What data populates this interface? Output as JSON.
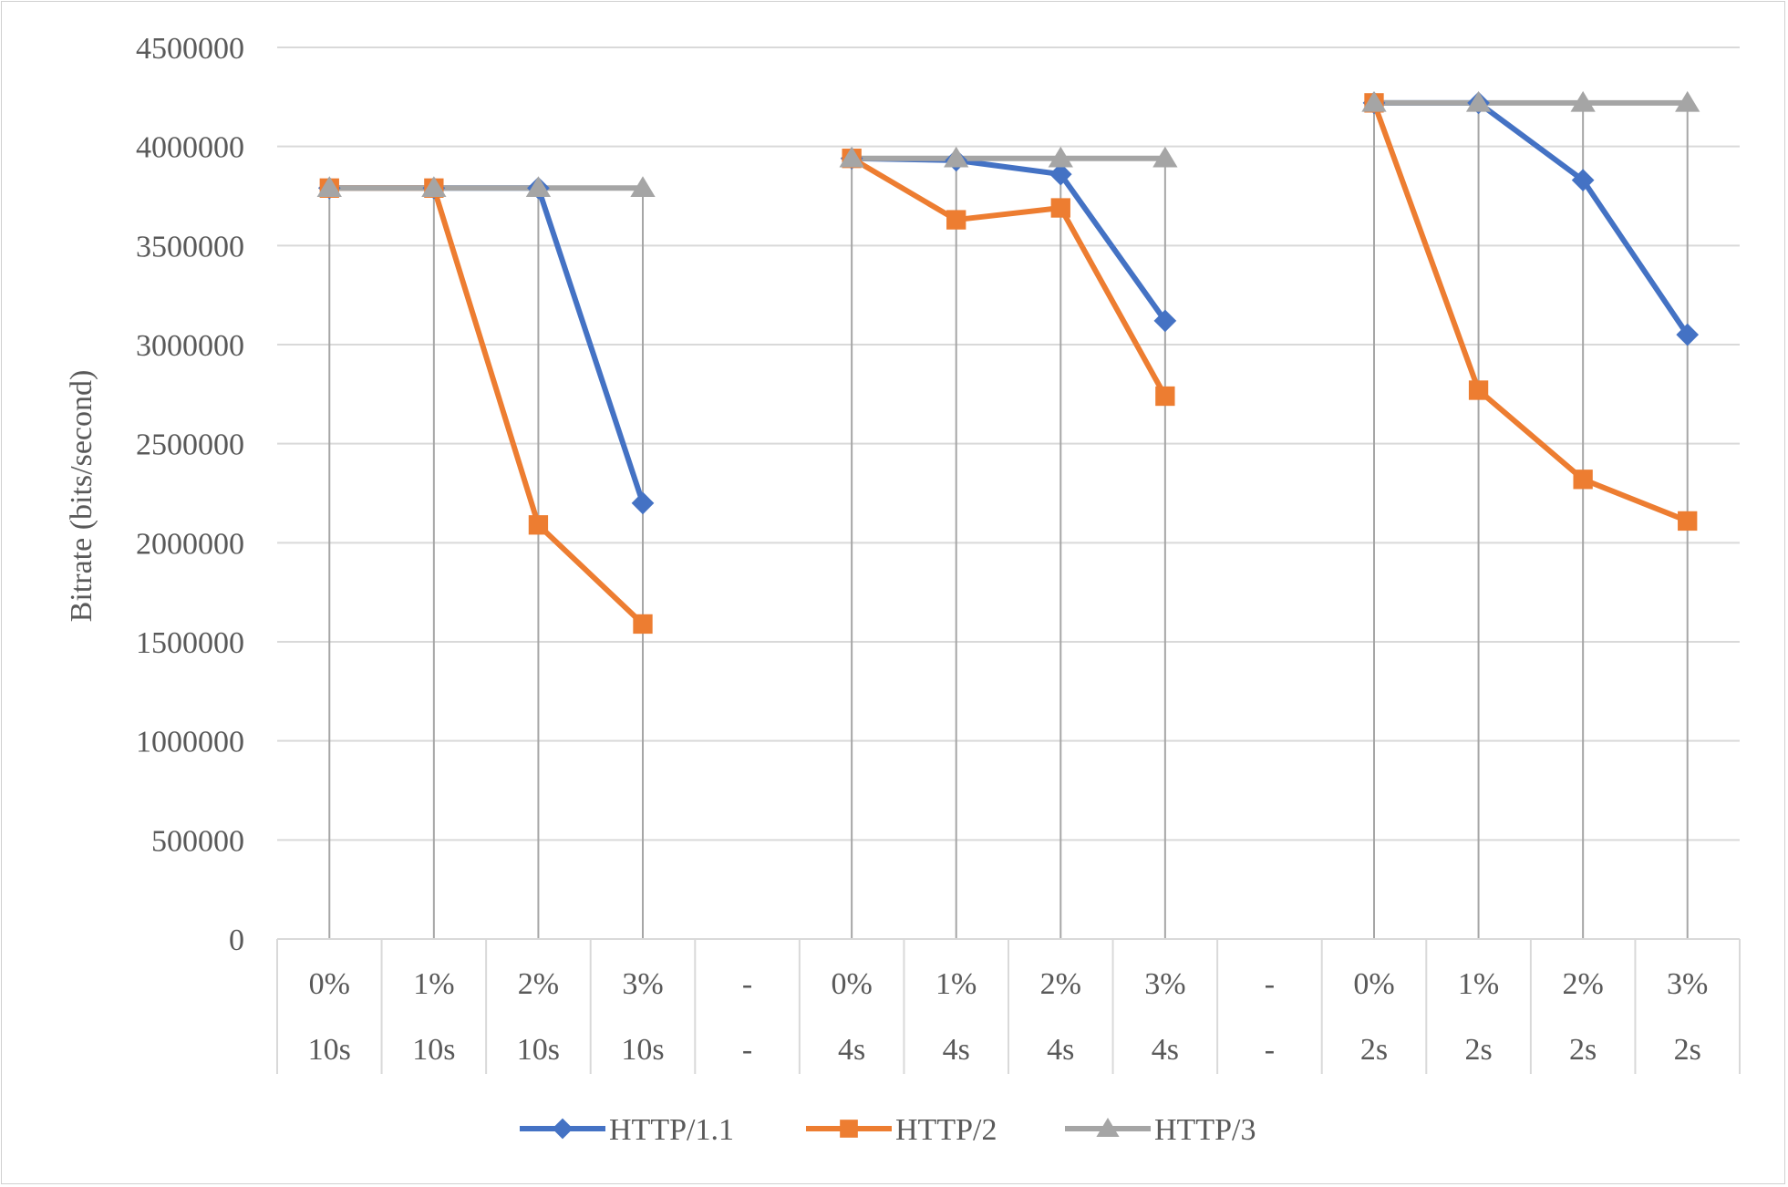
{
  "chart_data": {
    "type": "line",
    "title": "",
    "xlabel": "",
    "ylabel": "Bitrate (bits/second)",
    "ylim": [
      0,
      4500000
    ],
    "yticks": [
      0,
      500000,
      1000000,
      1500000,
      2000000,
      2500000,
      3000000,
      3500000,
      4000000,
      4500000
    ],
    "ytick_labels": [
      "0",
      "500000",
      "1000000",
      "1500000",
      "2000000",
      "2500000",
      "3000000",
      "3500000",
      "4000000",
      "4500000"
    ],
    "categories": [
      {
        "loss": "0%",
        "segment": "10s"
      },
      {
        "loss": "1%",
        "segment": "10s"
      },
      {
        "loss": "2%",
        "segment": "10s"
      },
      {
        "loss": "3%",
        "segment": "10s"
      },
      {
        "loss": "-",
        "segment": "-"
      },
      {
        "loss": "0%",
        "segment": "4s"
      },
      {
        "loss": "1%",
        "segment": "4s"
      },
      {
        "loss": "2%",
        "segment": "4s"
      },
      {
        "loss": "3%",
        "segment": "4s"
      },
      {
        "loss": "-",
        "segment": "-"
      },
      {
        "loss": "0%",
        "segment": "2s"
      },
      {
        "loss": "1%",
        "segment": "2s"
      },
      {
        "loss": "2%",
        "segment": "2s"
      },
      {
        "loss": "3%",
        "segment": "2s"
      }
    ],
    "series": [
      {
        "name": "HTTP/1.1",
        "color": "#4472C4",
        "marker": "diamond",
        "values": [
          3790000,
          3790000,
          3790000,
          2200000,
          null,
          3940000,
          3930000,
          3860000,
          3120000,
          null,
          4220000,
          4220000,
          3830000,
          3050000
        ]
      },
      {
        "name": "HTTP/2",
        "color": "#ED7D31",
        "marker": "square",
        "values": [
          3790000,
          3790000,
          2090000,
          1590000,
          null,
          3940000,
          3630000,
          3690000,
          2740000,
          null,
          4220000,
          2770000,
          2320000,
          2110000
        ]
      },
      {
        "name": "HTTP/3",
        "color": "#A5A5A5",
        "marker": "triangle",
        "values": [
          3790000,
          3790000,
          3790000,
          3790000,
          null,
          3940000,
          3940000,
          3940000,
          3940000,
          null,
          4220000,
          4220000,
          4220000,
          4220000
        ]
      }
    ],
    "drop_lines": true,
    "grid": true,
    "legend_position": "bottom"
  }
}
